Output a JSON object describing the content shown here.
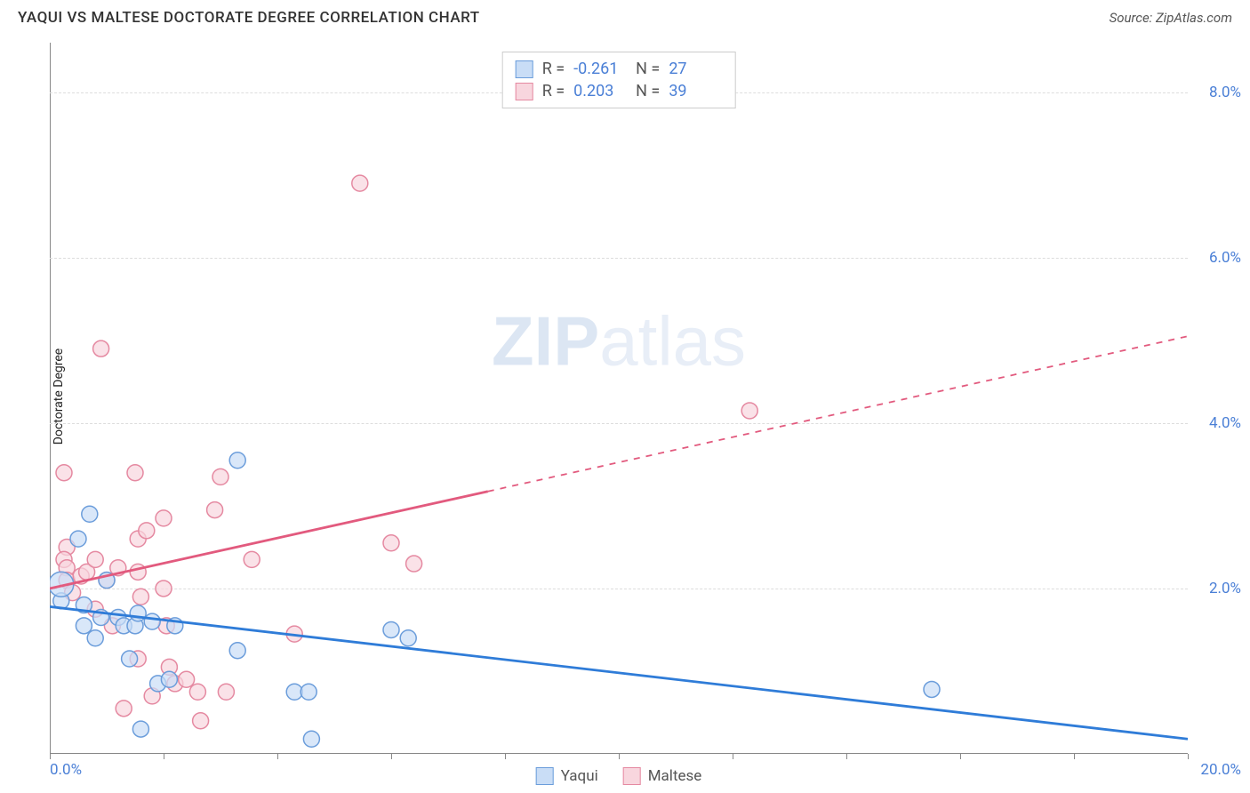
{
  "header": {
    "title": "YAQUI VS MALTESE DOCTORATE DEGREE CORRELATION CHART",
    "source": "Source: ZipAtlas.com"
  },
  "y_axis_label": "Doctorate Degree",
  "watermark": {
    "part1": "ZIP",
    "part2": "atlas"
  },
  "chart": {
    "type": "scatter_with_regression",
    "xlim": [
      0,
      20
    ],
    "ylim": [
      0,
      8.6
    ],
    "x_tick_label_low": "0.0%",
    "x_tick_label_high": "20.0%",
    "x_tick_positions": [
      0,
      2,
      4,
      6,
      8,
      10,
      12,
      14,
      16,
      18,
      20
    ],
    "y_ticks": [
      {
        "value": 2.0,
        "label": "2.0%"
      },
      {
        "value": 4.0,
        "label": "4.0%"
      },
      {
        "value": 6.0,
        "label": "6.0%"
      },
      {
        "value": 8.0,
        "label": "8.0%"
      }
    ],
    "grid_color": "#dddddd",
    "background_color": "#ffffff",
    "axis_color": "#888888",
    "tick_label_color": "#4a7fd6",
    "marker_radius": 9,
    "marker_stroke_width": 1.5,
    "trend_line_width": 2.8,
    "series": [
      {
        "name": "Yaqui",
        "fill_color": "#c9ddf6",
        "stroke_color": "#6b9ddb",
        "line_color": "#2f7cd8",
        "R": "-0.261",
        "N": "27",
        "trend": {
          "x1": 0,
          "y1": 1.78,
          "x2": 20,
          "y2": 0.18,
          "dashed_from_x": null
        },
        "points": [
          {
            "x": 0.2,
            "y": 1.85
          },
          {
            "x": 0.2,
            "y": 2.05,
            "r": 14
          },
          {
            "x": 0.5,
            "y": 2.6
          },
          {
            "x": 0.6,
            "y": 1.55
          },
          {
            "x": 0.7,
            "y": 2.9
          },
          {
            "x": 0.8,
            "y": 1.4
          },
          {
            "x": 1.0,
            "y": 2.1
          },
          {
            "x": 0.6,
            "y": 1.8
          },
          {
            "x": 1.2,
            "y": 1.65
          },
          {
            "x": 1.3,
            "y": 1.55
          },
          {
            "x": 1.4,
            "y": 1.15
          },
          {
            "x": 1.5,
            "y": 1.55
          },
          {
            "x": 1.55,
            "y": 1.7
          },
          {
            "x": 1.8,
            "y": 1.6
          },
          {
            "x": 1.9,
            "y": 0.85
          },
          {
            "x": 2.1,
            "y": 0.9
          },
          {
            "x": 2.2,
            "y": 1.55
          },
          {
            "x": 1.6,
            "y": 0.3
          },
          {
            "x": 3.3,
            "y": 3.55
          },
          {
            "x": 3.3,
            "y": 1.25
          },
          {
            "x": 4.3,
            "y": 0.75
          },
          {
            "x": 4.55,
            "y": 0.75
          },
          {
            "x": 4.6,
            "y": 0.18
          },
          {
            "x": 6.0,
            "y": 1.5
          },
          {
            "x": 6.3,
            "y": 1.4
          },
          {
            "x": 15.5,
            "y": 0.78
          },
          {
            "x": 0.9,
            "y": 1.65
          }
        ]
      },
      {
        "name": "Maltese",
        "fill_color": "#f8d6de",
        "stroke_color": "#e589a1",
        "line_color": "#e25a7e",
        "R": "0.203",
        "N": "39",
        "trend": {
          "x1": 0,
          "y1": 2.0,
          "x2": 20,
          "y2": 5.05,
          "dashed_from_x": 7.7
        },
        "points": [
          {
            "x": 0.25,
            "y": 3.4
          },
          {
            "x": 0.3,
            "y": 2.5
          },
          {
            "x": 0.25,
            "y": 2.35
          },
          {
            "x": 0.3,
            "y": 2.25
          },
          {
            "x": 0.3,
            "y": 2.1
          },
          {
            "x": 0.4,
            "y": 1.95
          },
          {
            "x": 0.55,
            "y": 2.15
          },
          {
            "x": 0.65,
            "y": 2.2
          },
          {
            "x": 0.8,
            "y": 1.75
          },
          {
            "x": 0.8,
            "y": 2.35
          },
          {
            "x": 0.9,
            "y": 4.9
          },
          {
            "x": 1.0,
            "y": 2.1
          },
          {
            "x": 1.1,
            "y": 1.55
          },
          {
            "x": 1.2,
            "y": 2.25
          },
          {
            "x": 1.3,
            "y": 0.55
          },
          {
            "x": 1.5,
            "y": 3.4
          },
          {
            "x": 1.55,
            "y": 2.6
          },
          {
            "x": 1.55,
            "y": 2.2
          },
          {
            "x": 1.6,
            "y": 1.9
          },
          {
            "x": 1.55,
            "y": 1.15
          },
          {
            "x": 1.7,
            "y": 2.7
          },
          {
            "x": 1.8,
            "y": 0.7
          },
          {
            "x": 2.0,
            "y": 2.85
          },
          {
            "x": 2.0,
            "y": 2.0
          },
          {
            "x": 2.05,
            "y": 1.55
          },
          {
            "x": 2.1,
            "y": 1.05
          },
          {
            "x": 2.2,
            "y": 0.85
          },
          {
            "x": 2.4,
            "y": 0.9
          },
          {
            "x": 2.6,
            "y": 0.75
          },
          {
            "x": 2.65,
            "y": 0.4
          },
          {
            "x": 2.9,
            "y": 2.95
          },
          {
            "x": 3.0,
            "y": 3.35
          },
          {
            "x": 3.1,
            "y": 0.75
          },
          {
            "x": 3.55,
            "y": 2.35
          },
          {
            "x": 4.3,
            "y": 1.45
          },
          {
            "x": 5.45,
            "y": 6.9
          },
          {
            "x": 6.0,
            "y": 2.55
          },
          {
            "x": 6.4,
            "y": 2.3
          },
          {
            "x": 12.3,
            "y": 4.15
          }
        ]
      }
    ]
  },
  "legend_top": {
    "r_label": "R =",
    "n_label": "N ="
  },
  "legend_bottom": {
    "items": [
      "Yaqui",
      "Maltese"
    ]
  }
}
